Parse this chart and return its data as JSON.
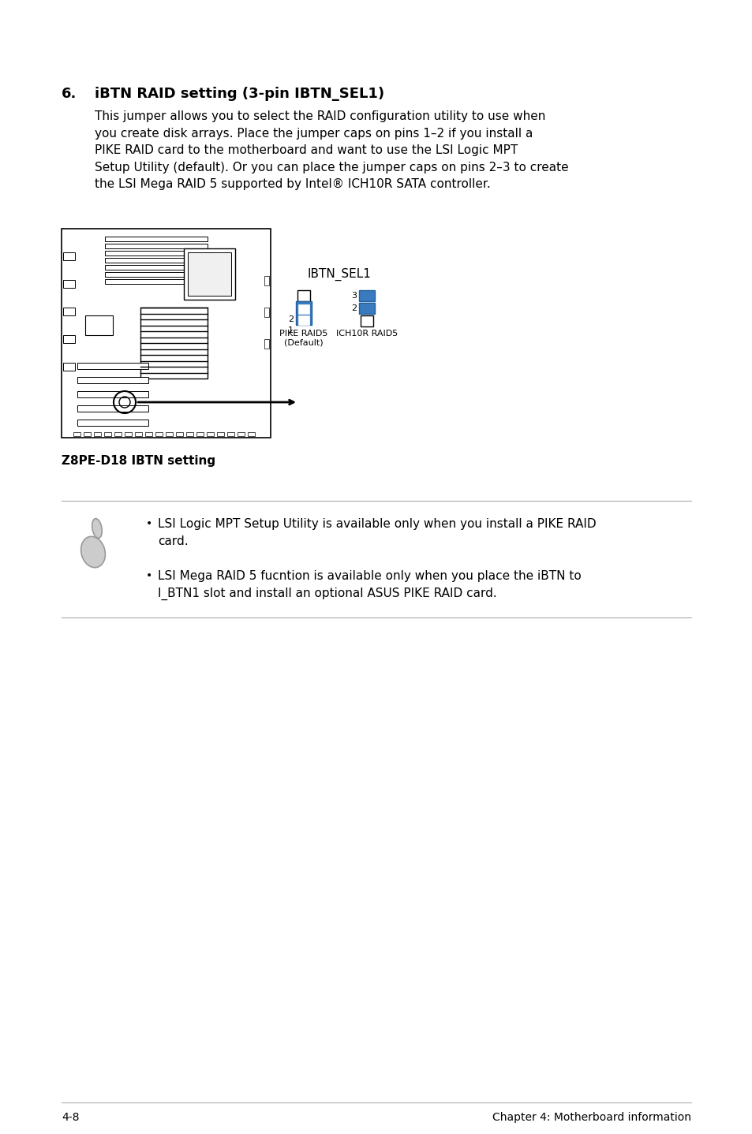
{
  "bg_color": "#ffffff",
  "section_number": "6.",
  "section_title": "iBTN RAID setting (3-pin IBTN_SEL1)",
  "body_text": "This jumper allows you to select the RAID configuration utility to use when\nyou create disk arrays. Place the jumper caps on pins 1–2 if you install a\nPIKE RAID card to the motherboard and want to use the LSI Logic MPT\nSetup Utility (default). Or you can place the jumper caps on pins 2–3 to create\nthe LSI Mega RAID 5 supported by Intel® ICH10R SATA controller.",
  "diagram_caption": "Z8PE-D18 IBTN setting",
  "ibtn_label": "IBTN_SEL1",
  "pike_label": "PIKE RAID5\n(Default)",
  "ich10r_label": "ICH10R RAID5",
  "note_bullet1": "LSI Logic MPT Setup Utility is available only when you install a PIKE RAID\ncard.",
  "note_bullet2": "LSI Mega RAID 5 fucntion is available only when you place the iBTN to\nI_BTN1 slot and install an optional ASUS PIKE RAID card.",
  "footer_left": "4-8",
  "footer_right": "Chapter 4: Motherboard information",
  "pin_blue": "#3a7abf"
}
